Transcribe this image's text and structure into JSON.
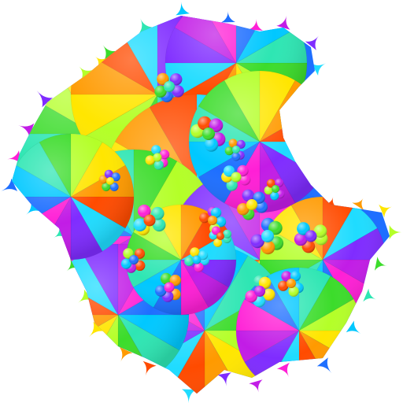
{
  "image": {
    "palette": [
      "#7f2cff",
      "#c21ce6",
      "#ff1fd6",
      "#1e6fff",
      "#00c8ff",
      "#2ee6b3",
      "#3cdc2b",
      "#b4ff28",
      "#ffe600",
      "#ff9a00",
      "#ff4b00",
      "#1fdcff"
    ],
    "background": "#ffffff"
  }
}
